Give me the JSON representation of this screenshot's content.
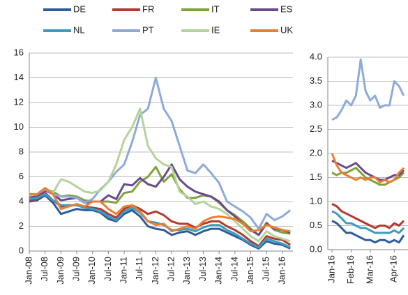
{
  "chart_data": [
    {
      "type": "line",
      "legend": "top",
      "grid": true,
      "x": [
        "2008-01",
        "2008-04",
        "2008-07",
        "2008-10",
        "2009-01",
        "2009-04",
        "2009-07",
        "2009-10",
        "2010-01",
        "2010-04",
        "2010-07",
        "2010-10",
        "2011-01",
        "2011-04",
        "2011-07",
        "2011-10",
        "2012-01",
        "2012-04",
        "2012-07",
        "2012-10",
        "2013-01",
        "2013-04",
        "2013-07",
        "2013-10",
        "2014-01",
        "2014-04",
        "2014-07",
        "2014-10",
        "2015-01",
        "2015-04",
        "2015-07",
        "2015-10",
        "2016-01",
        "2016-04"
      ],
      "xlim": [
        "2008-01",
        "2016-05"
      ],
      "xticks": [
        {
          "value": "2008-01",
          "label": "Jan-08"
        },
        {
          "value": "2008-07",
          "label": "Jul-08"
        },
        {
          "value": "2009-01",
          "label": "Jan-09"
        },
        {
          "value": "2009-07",
          "label": "Jul-09"
        },
        {
          "value": "2010-01",
          "label": "Jan-10"
        },
        {
          "value": "2010-07",
          "label": "Jul-10"
        },
        {
          "value": "2011-01",
          "label": "Jan-11"
        },
        {
          "value": "2011-07",
          "label": "Jul-11"
        },
        {
          "value": "2012-01",
          "label": "Jan-12"
        },
        {
          "value": "2012-07",
          "label": "Jul-12"
        },
        {
          "value": "2013-01",
          "label": "Jan-13"
        },
        {
          "value": "2013-07",
          "label": "Jul-13"
        },
        {
          "value": "2014-01",
          "label": "Jan-14"
        },
        {
          "value": "2014-07",
          "label": "Jul-14"
        },
        {
          "value": "2015-01",
          "label": "Jan-15"
        },
        {
          "value": "2015-07",
          "label": "Jul-15"
        },
        {
          "value": "2016-01",
          "label": "Jan-16"
        }
      ],
      "ylim": [
        0,
        16
      ],
      "yticks": [
        0,
        2,
        4,
        6,
        8,
        10,
        12,
        14,
        16
      ],
      "series": [
        {
          "name": "DE",
          "color": "#2f5b9a",
          "values": [
            4.0,
            4.1,
            4.5,
            3.9,
            3.0,
            3.2,
            3.4,
            3.3,
            3.3,
            3.1,
            2.6,
            2.4,
            3.0,
            3.3,
            2.8,
            2.0,
            1.8,
            1.7,
            1.3,
            1.5,
            1.6,
            1.3,
            1.6,
            1.8,
            1.8,
            1.5,
            1.2,
            0.9,
            0.5,
            0.2,
            0.8,
            0.6,
            0.5,
            0.2
          ]
        },
        {
          "name": "FR",
          "color": "#b23a30",
          "values": [
            4.1,
            4.2,
            4.7,
            4.1,
            3.6,
            3.7,
            3.7,
            3.6,
            3.5,
            3.4,
            3.0,
            2.7,
            3.4,
            3.7,
            3.4,
            3.0,
            3.2,
            2.9,
            2.4,
            2.2,
            2.2,
            1.9,
            2.2,
            2.4,
            2.4,
            2.0,
            1.7,
            1.3,
            0.8,
            0.4,
            1.2,
            1.0,
            0.9,
            0.5
          ]
        },
        {
          "name": "IT",
          "color": "#7ea33b",
          "values": [
            4.5,
            4.6,
            5.0,
            4.8,
            4.4,
            4.5,
            4.4,
            4.1,
            4.0,
            4.0,
            4.0,
            3.9,
            4.7,
            4.8,
            5.6,
            6.0,
            6.8,
            5.6,
            6.2,
            5.0,
            4.3,
            4.3,
            4.5,
            4.4,
            3.9,
            3.3,
            2.9,
            2.4,
            1.8,
            1.3,
            2.3,
            1.7,
            1.5,
            1.4
          ]
        },
        {
          "name": "ES",
          "color": "#6a4a8f",
          "values": [
            4.4,
            4.4,
            4.9,
            4.6,
            4.1,
            4.2,
            4.3,
            3.9,
            4.0,
            4.0,
            4.5,
            4.2,
            5.4,
            5.3,
            5.9,
            5.4,
            5.2,
            6.0,
            7.0,
            5.8,
            5.2,
            4.8,
            4.6,
            4.4,
            4.0,
            3.3,
            2.8,
            2.2,
            1.7,
            1.3,
            2.2,
            1.8,
            1.7,
            1.5
          ]
        },
        {
          "name": "NL",
          "color": "#3a9dbf",
          "values": [
            4.2,
            4.3,
            4.6,
            4.1,
            3.7,
            3.7,
            3.7,
            3.5,
            3.4,
            3.2,
            2.8,
            2.5,
            3.2,
            3.5,
            3.1,
            2.4,
            2.3,
            2.1,
            1.7,
            1.7,
            1.8,
            1.6,
            1.9,
            2.1,
            2.1,
            1.7,
            1.4,
            1.0,
            0.6,
            0.3,
            1.0,
            0.8,
            0.6,
            0.3
          ]
        },
        {
          "name": "PT",
          "color": "#8eaadb",
          "values": [
            4.5,
            4.6,
            5.0,
            4.6,
            4.4,
            4.4,
            4.3,
            3.9,
            4.2,
            5.0,
            5.6,
            6.4,
            7.0,
            8.8,
            11.0,
            11.5,
            14.0,
            11.5,
            10.5,
            8.5,
            6.5,
            6.3,
            7.0,
            6.3,
            5.5,
            4.0,
            3.6,
            3.2,
            2.7,
            1.8,
            3.0,
            2.5,
            2.8,
            3.3
          ]
        },
        {
          "name": "IE",
          "color": "#b5d39a",
          "values": [
            4.5,
            4.6,
            5.1,
            4.7,
            5.8,
            5.6,
            5.2,
            4.8,
            4.7,
            4.9,
            5.6,
            7.0,
            9.0,
            10.0,
            11.5,
            8.5,
            7.5,
            7.0,
            6.8,
            4.8,
            4.4,
            3.8,
            4.0,
            3.6,
            3.4,
            3.0,
            2.4,
            1.8,
            1.2,
            0.8,
            1.6,
            1.2,
            1.0,
            0.8
          ]
        },
        {
          "name": "UK",
          "color": "#ed7d31",
          "values": [
            4.6,
            4.6,
            5.1,
            4.6,
            3.4,
            3.6,
            3.8,
            3.6,
            4.0,
            4.0,
            3.4,
            3.0,
            3.6,
            3.7,
            3.2,
            2.4,
            2.1,
            2.2,
            1.6,
            1.8,
            2.0,
            1.8,
            2.4,
            2.7,
            2.8,
            2.7,
            2.6,
            2.2,
            1.6,
            1.7,
            2.1,
            1.9,
            1.7,
            1.6
          ]
        }
      ]
    },
    {
      "type": "line",
      "grid": true,
      "categories": [
        "Jan-16",
        null,
        null,
        null,
        "Feb-16",
        null,
        null,
        null,
        "Mar-16",
        null,
        null,
        null,
        null,
        "Apr-16",
        null,
        null
      ],
      "ylim": [
        0,
        4
      ],
      "yticks": [
        {
          "value": 0,
          "label": "0.0"
        },
        0.5,
        {
          "value": 1,
          "label": "1.0"
        },
        1.5,
        {
          "value": 2,
          "label": "2.0"
        },
        2.5,
        {
          "value": 3,
          "label": "3.0"
        },
        3.5,
        {
          "value": 4,
          "label": "4.0"
        }
      ],
      "series": [
        {
          "name": "DE",
          "color": "#2f5b9a",
          "values": [
            0.6,
            0.55,
            0.45,
            0.35,
            0.35,
            0.3,
            0.25,
            0.2,
            0.2,
            0.15,
            0.2,
            0.2,
            0.15,
            0.2,
            0.15,
            0.3
          ]
        },
        {
          "name": "FR",
          "color": "#b23a30",
          "values": [
            0.95,
            0.9,
            0.8,
            0.75,
            0.7,
            0.65,
            0.6,
            0.55,
            0.5,
            0.45,
            0.5,
            0.5,
            0.45,
            0.55,
            0.5,
            0.6
          ]
        },
        {
          "name": "IT",
          "color": "#7ea33b",
          "values": [
            1.6,
            1.55,
            1.6,
            1.6,
            1.65,
            1.7,
            1.6,
            1.5,
            1.45,
            1.4,
            1.35,
            1.35,
            1.4,
            1.45,
            1.5,
            1.6
          ]
        },
        {
          "name": "ES",
          "color": "#6a4a8f",
          "values": [
            1.85,
            1.8,
            1.75,
            1.7,
            1.75,
            1.8,
            1.7,
            1.6,
            1.55,
            1.5,
            1.45,
            1.45,
            1.5,
            1.55,
            1.55,
            1.65
          ]
        },
        {
          "name": "NL",
          "color": "#3a9dbf",
          "values": [
            0.8,
            0.75,
            0.65,
            0.55,
            0.55,
            0.5,
            0.45,
            0.45,
            0.4,
            0.35,
            0.35,
            0.35,
            0.35,
            0.4,
            0.35,
            0.45
          ]
        },
        {
          "name": "PT",
          "color": "#8eaadb",
          "values": [
            2.7,
            2.75,
            2.9,
            3.1,
            3.0,
            3.2,
            3.95,
            3.3,
            3.1,
            3.2,
            2.95,
            3.0,
            3.0,
            3.5,
            3.4,
            3.2
          ]
        },
        {
          "name": "UK",
          "color": "#ed7d31",
          "values": [
            2.0,
            1.75,
            1.6,
            1.55,
            1.5,
            1.45,
            1.5,
            1.45,
            1.5,
            1.5,
            1.4,
            1.45,
            1.4,
            1.45,
            1.6,
            1.7
          ]
        }
      ]
    }
  ]
}
